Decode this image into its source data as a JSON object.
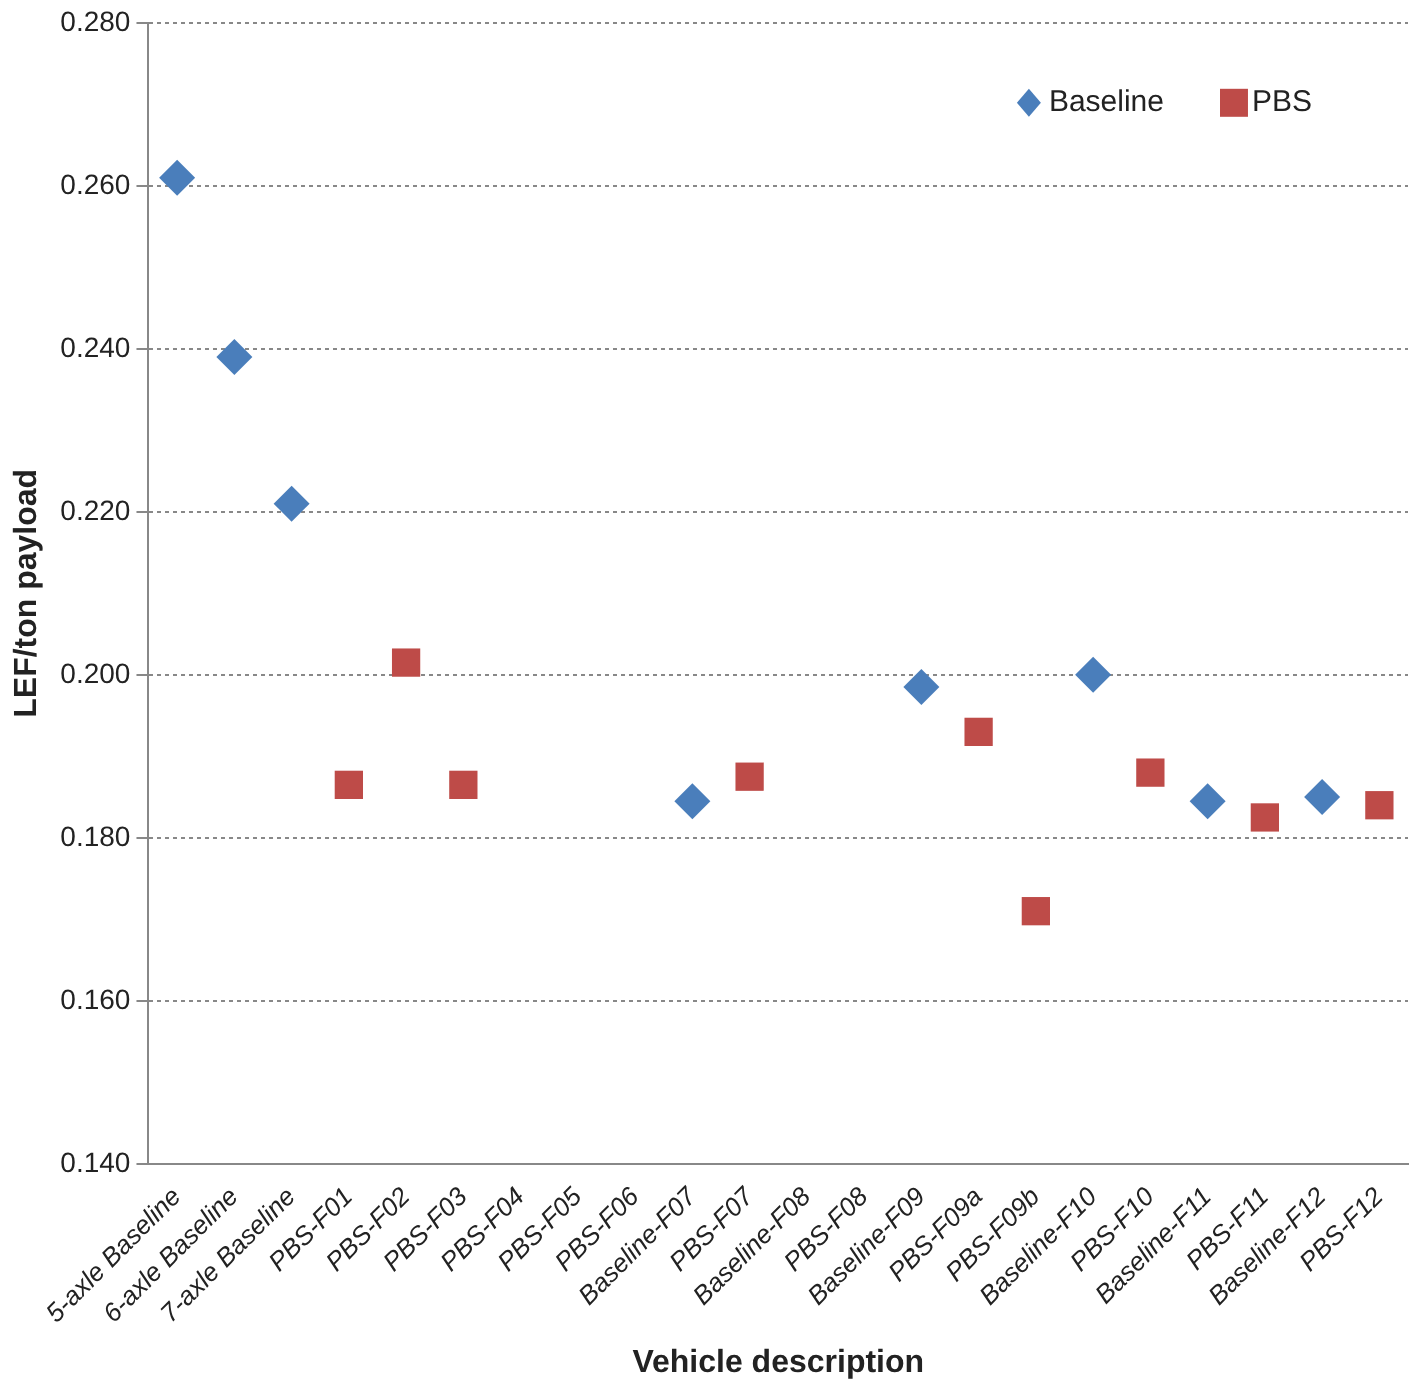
{
  "chart_data": {
    "type": "scatter",
    "xlabel": "Vehicle description",
    "ylabel": "LEF/ton payload",
    "categories": [
      "5-axle Baseline",
      "6-axle Baseline",
      "7-axle Baseline",
      "PBS-F01",
      "PBS-F02",
      "PBS-F03",
      "PBS-F04",
      "PBS-F05",
      "PBS-F06",
      "Baseline-F07",
      "PBS-F07",
      "Baseline-F08",
      "PBS-F08",
      "Baseline-F09",
      "PBS-F09a",
      "PBS-F09b",
      "Baseline-F10",
      "PBS-F10",
      "Baseline-F11",
      "PBS-F11",
      "Baseline-F12",
      "PBS-F12"
    ],
    "series": [
      {
        "name": "Baseline",
        "color": "#4a7ebb",
        "marker": "diamond",
        "values": [
          0.261,
          0.239,
          0.221,
          null,
          null,
          null,
          null,
          null,
          null,
          0.1845,
          null,
          null,
          null,
          0.1985,
          null,
          null,
          0.2,
          null,
          0.1845,
          null,
          0.185,
          null
        ]
      },
      {
        "name": "PBS",
        "color": "#be4b48",
        "marker": "square",
        "values": [
          null,
          null,
          null,
          0.1865,
          0.2015,
          0.1865,
          null,
          null,
          null,
          null,
          0.1875,
          null,
          null,
          null,
          0.193,
          0.171,
          null,
          0.188,
          null,
          0.1825,
          null,
          0.184
        ]
      }
    ],
    "ylim": [
      0.14,
      0.28
    ],
    "yticks": [
      {
        "value": 0.14,
        "label": "0.140"
      },
      {
        "value": 0.16,
        "label": "0.160"
      },
      {
        "value": 0.18,
        "label": "0.180"
      },
      {
        "value": 0.2,
        "label": "0.200"
      },
      {
        "value": 0.22,
        "label": "0.220"
      },
      {
        "value": 0.24,
        "label": "0.240"
      },
      {
        "value": 0.26,
        "label": "0.260"
      },
      {
        "value": 0.28,
        "label": "0.280"
      }
    ],
    "grid": "y",
    "legend": "top right"
  }
}
